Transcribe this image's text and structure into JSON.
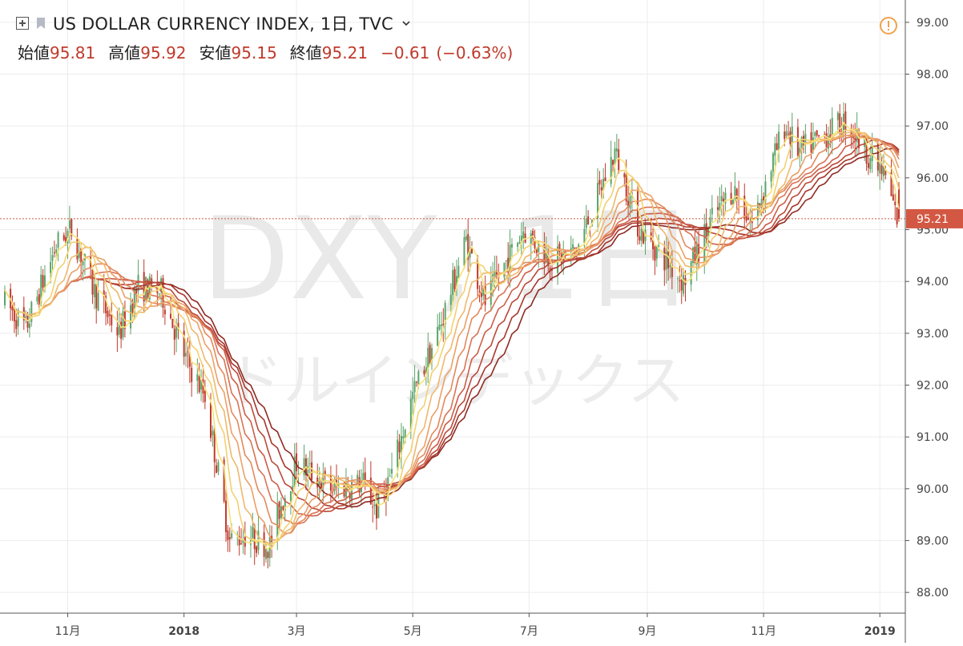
{
  "header": {
    "title": "US DOLLAR CURRENCY INDEX, 1日, TVC",
    "open_label": "始値",
    "open": "95.81",
    "high_label": "高値",
    "high": "95.92",
    "low_label": "安値",
    "low": "95.15",
    "close_label": "終値",
    "close": "95.21",
    "change": "−0.61",
    "change_pct": "(−0.63%)",
    "icons": [
      "expand-icon",
      "flag-icon",
      "chevron-down-icon",
      "warning-icon"
    ]
  },
  "watermark": {
    "symbol": "DXY, 1日",
    "description": "ドルインデックス"
  },
  "colors": {
    "up": "#5aa469",
    "down": "#c0392b",
    "last_price_bg": "#d35843",
    "ribbon": [
      "#f7e27a",
      "#f3d070",
      "#efb86c",
      "#eba066",
      "#e38a5e",
      "#d97454",
      "#cc5e48",
      "#bb4a3a",
      "#a6362c",
      "#8f2a22"
    ]
  },
  "chart_data": {
    "type": "candlestick",
    "title": "US DOLLAR CURRENCY INDEX, 1日, TVC",
    "interval": "1日",
    "y_ticks": [
      "99.00",
      "98.00",
      "97.00",
      "96.00",
      "95.00",
      "94.00",
      "93.00",
      "92.00",
      "91.00",
      "90.00",
      "89.00",
      "88.00"
    ],
    "ylim": [
      87.6,
      99.4
    ],
    "x_ticks": [
      "11月",
      "2018",
      "3月",
      "5月",
      "7月",
      "9月",
      "11月",
      "2019"
    ],
    "x_tick_dates": [
      "2017-11-01",
      "2018-01-01",
      "2018-03-01",
      "2018-05-01",
      "2018-07-01",
      "2018-09-01",
      "2018-11-01",
      "2019-01-01"
    ],
    "x_range": [
      "2017-09-29",
      "2019-01-11"
    ],
    "last_price": "95.21",
    "grid": true,
    "trend_path": [
      [
        "2017-09-29",
        93.6
      ],
      [
        "2017-10-10",
        93.1
      ],
      [
        "2017-10-26",
        94.7
      ],
      [
        "2017-11-03",
        95.0
      ],
      [
        "2017-11-15",
        93.8
      ],
      [
        "2017-11-28",
        93.0
      ],
      [
        "2017-12-08",
        93.9
      ],
      [
        "2017-12-20",
        93.8
      ],
      [
        "2018-01-02",
        92.5
      ],
      [
        "2018-01-12",
        91.8
      ],
      [
        "2018-01-25",
        89.0
      ],
      [
        "2018-02-02",
        89.1
      ],
      [
        "2018-02-15",
        88.9
      ],
      [
        "2018-02-20",
        89.6
      ],
      [
        "2018-03-01",
        90.5
      ],
      [
        "2018-03-20",
        90.0
      ],
      [
        "2018-04-05",
        90.1
      ],
      [
        "2018-04-12",
        89.6
      ],
      [
        "2018-04-20",
        90.3
      ],
      [
        "2018-05-01",
        91.8
      ],
      [
        "2018-05-15",
        93.1
      ],
      [
        "2018-05-29",
        94.8
      ],
      [
        "2018-06-08",
        93.6
      ],
      [
        "2018-06-28",
        95.0
      ],
      [
        "2018-07-13",
        94.4
      ],
      [
        "2018-07-26",
        94.6
      ],
      [
        "2018-08-15",
        96.5
      ],
      [
        "2018-08-28",
        95.0
      ],
      [
        "2018-09-20",
        94.0
      ],
      [
        "2018-10-05",
        95.2
      ],
      [
        "2018-10-16",
        95.8
      ],
      [
        "2018-10-26",
        95.1
      ],
      [
        "2018-11-12",
        97.0
      ],
      [
        "2018-11-20",
        96.5
      ],
      [
        "2018-12-14",
        97.1
      ],
      [
        "2018-12-31",
        96.2
      ],
      [
        "2019-01-04",
        96.0
      ],
      [
        "2019-01-10",
        95.2
      ]
    ],
    "moving_averages": {
      "type": "ribbon",
      "count": 10,
      "lengths": [
        5,
        10,
        15,
        20,
        25,
        30,
        35,
        40,
        45,
        50
      ]
    }
  }
}
